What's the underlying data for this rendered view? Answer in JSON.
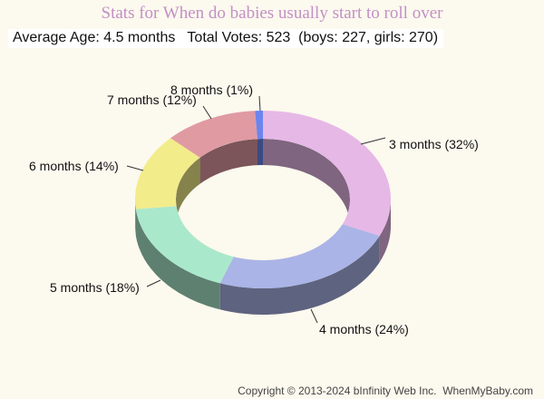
{
  "chart_data": {
    "type": "pie",
    "variant": "3d-donut",
    "title": "Stats for When do babies usually start to roll over",
    "slices": [
      {
        "label": "3 months",
        "percent": 32,
        "display": "3 months (32%)",
        "color": "#e6b8e6"
      },
      {
        "label": "4 months",
        "percent": 24,
        "display": "4 months (24%)",
        "color": "#aab4e6"
      },
      {
        "label": "5 months",
        "percent": 18,
        "display": "5 months (18%)",
        "color": "#aae8cc"
      },
      {
        "label": "6 months",
        "percent": 14,
        "display": "6 months (14%)",
        "color": "#f2ec8a"
      },
      {
        "label": "7 months",
        "percent": 12,
        "display": "7 months (12%)",
        "color": "#e09aa2"
      },
      {
        "label": "8 months",
        "percent": 1,
        "display": "8 months (1%)",
        "color": "#6c84ee"
      }
    ]
  },
  "stats": {
    "text": "Average Age: 4.5 months   Total Votes: 523  (boys: 227, girls: 270)",
    "average_age": "4.5 months",
    "total_votes": 523,
    "boys": 227,
    "girls": 270
  },
  "footer": {
    "copyright": "Copyright © 2013-2024 bInfinity Web Inc.  WhenMyBaby.com"
  }
}
